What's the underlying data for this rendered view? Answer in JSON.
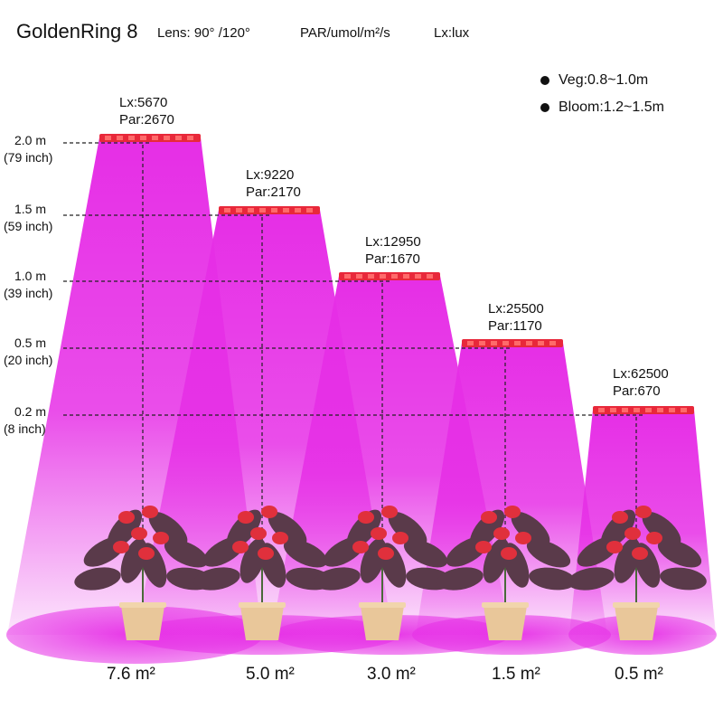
{
  "header": {
    "title": "GoldenRing 8",
    "lens": "Lens:  90° /120°",
    "par_unit": "PAR/umol/m²/s",
    "lux_unit": "Lx:lux"
  },
  "legend": [
    {
      "label": "Veg:0.8~1.0m"
    },
    {
      "label": "Bloom:1.2~1.5m"
    }
  ],
  "heights": [
    {
      "meters": "2.0 m",
      "inches": "(79 inch)"
    },
    {
      "meters": "1.5 m",
      "inches": "(59 inch)"
    },
    {
      "meters": "1.0 m",
      "inches": "(39 inch)"
    },
    {
      "meters": "0.5 m",
      "inches": "(20 inch)"
    },
    {
      "meters": "0.2 m",
      "inches": "(8 inch)"
    }
  ],
  "readings": [
    {
      "lux": "Lx:5670",
      "par": "Par:2670",
      "area": "7.6 m²"
    },
    {
      "lux": "Lx:9220",
      "par": "Par:2170",
      "area": "5.0 m²"
    },
    {
      "lux": "Lx:12950",
      "par": "Par:1670",
      "area": "3.0 m²"
    },
    {
      "lux": "Lx:25500",
      "par": "Par:1170",
      "area": "1.5 m²"
    },
    {
      "lux": "Lx:62500",
      "par": "Par:670",
      "area": "0.5 m²"
    }
  ],
  "colors": {
    "beam": "#e62ee6",
    "lamp": "#e8283a",
    "pot": "#e9c79a",
    "leaf": "#5a3a4a",
    "flower": "#e0303c"
  }
}
